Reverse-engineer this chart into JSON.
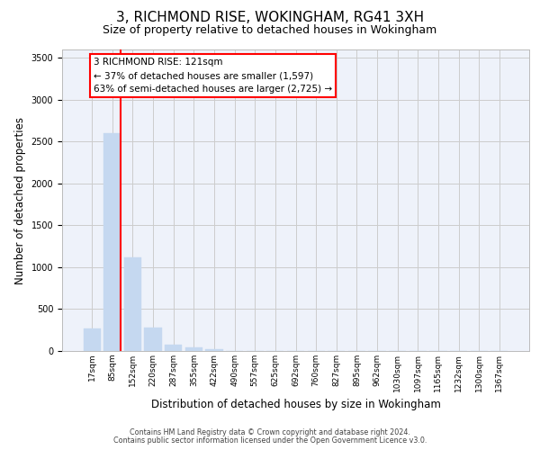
{
  "title1": "3, RICHMOND RISE, WOKINGHAM, RG41 3XH",
  "title2": "Size of property relative to detached houses in Wokingham",
  "xlabel": "Distribution of detached houses by size in Wokingham",
  "ylabel": "Number of detached properties",
  "bar_labels": [
    "17sqm",
    "85sqm",
    "152sqm",
    "220sqm",
    "287sqm",
    "355sqm",
    "422sqm",
    "490sqm",
    "557sqm",
    "625sqm",
    "692sqm",
    "760sqm",
    "827sqm",
    "895sqm",
    "962sqm",
    "1030sqm",
    "1097sqm",
    "1165sqm",
    "1232sqm",
    "1300sqm",
    "1367sqm"
  ],
  "bar_values": [
    270,
    2600,
    1120,
    280,
    80,
    45,
    25,
    0,
    0,
    0,
    0,
    0,
    0,
    0,
    0,
    0,
    0,
    0,
    0,
    0,
    0
  ],
  "bar_color": "#c5d8f0",
  "bar_edgecolor": "#c5d8f0",
  "grid_color": "#cccccc",
  "bg_color": "#eef2fa",
  "vline_color": "red",
  "vline_pos": 1.425,
  "ylim": [
    0,
    3600
  ],
  "yticks": [
    0,
    500,
    1000,
    1500,
    2000,
    2500,
    3000,
    3500
  ],
  "annotation_line1": "3 RICHMOND RISE: 121sqm",
  "annotation_line2": "← 37% of detached houses are smaller (1,597)",
  "annotation_line3": "63% of semi-detached houses are larger (2,725) →",
  "footer1": "Contains HM Land Registry data © Crown copyright and database right 2024.",
  "footer2": "Contains public sector information licensed under the Open Government Licence v3.0.",
  "title1_fontsize": 11,
  "title2_fontsize": 9,
  "annotation_fontsize": 7.5,
  "tick_fontsize": 6.5,
  "xlabel_fontsize": 8.5,
  "ylabel_fontsize": 8.5,
  "footer_fontsize": 5.8
}
